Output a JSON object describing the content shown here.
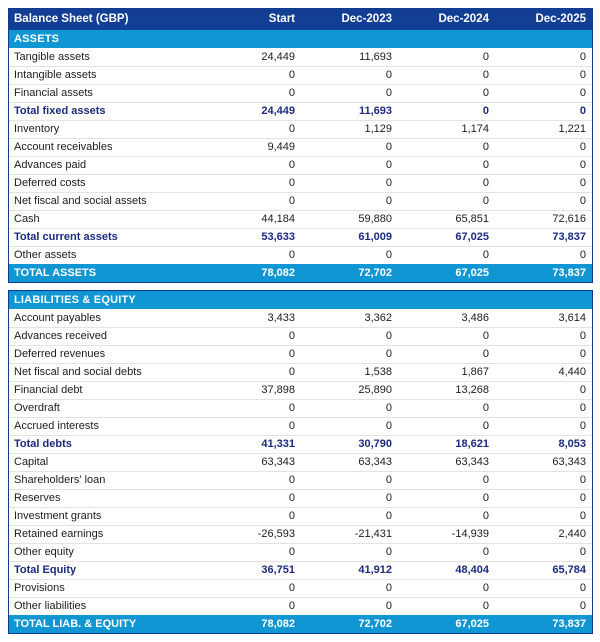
{
  "table": {
    "title": "Balance Sheet (GBP)",
    "columns": [
      "Start",
      "Dec-2023",
      "Dec-2024",
      "Dec-2025"
    ],
    "colors": {
      "header_bg": "#123f94",
      "section_bg": "#1096d3",
      "border": "#113a90",
      "subtotal_text": "#1c2b7f",
      "separator": "#e3e3e3",
      "row_text": "#1c1c1c"
    },
    "sections": [
      {
        "name": "ASSETS",
        "rows": [
          {
            "label": "Tangible assets",
            "values": [
              "24,449",
              "11,693",
              "0",
              "0"
            ],
            "style": "normal"
          },
          {
            "label": "Intangible assets",
            "values": [
              "0",
              "0",
              "0",
              "0"
            ],
            "style": "normal"
          },
          {
            "label": "Financial assets",
            "values": [
              "0",
              "0",
              "0",
              "0"
            ],
            "style": "normal"
          },
          {
            "label": "Total fixed assets",
            "values": [
              "24,449",
              "11,693",
              "0",
              "0"
            ],
            "style": "subtotal"
          },
          {
            "label": "Inventory",
            "values": [
              "0",
              "1,129",
              "1,174",
              "1,221"
            ],
            "style": "normal"
          },
          {
            "label": "Account receivables",
            "values": [
              "9,449",
              "0",
              "0",
              "0"
            ],
            "style": "normal"
          },
          {
            "label": "Advances paid",
            "values": [
              "0",
              "0",
              "0",
              "0"
            ],
            "style": "normal"
          },
          {
            "label": "Deferred costs",
            "values": [
              "0",
              "0",
              "0",
              "0"
            ],
            "style": "normal"
          },
          {
            "label": "Net fiscal and social assets",
            "values": [
              "0",
              "0",
              "0",
              "0"
            ],
            "style": "normal"
          },
          {
            "label": "Cash",
            "values": [
              "44,184",
              "59,880",
              "65,851",
              "72,616"
            ],
            "style": "normal"
          },
          {
            "label": "Total current assets",
            "values": [
              "53,633",
              "61,009",
              "67,025",
              "73,837"
            ],
            "style": "subtotal"
          },
          {
            "label": "Other assets",
            "values": [
              "0",
              "0",
              "0",
              "0"
            ],
            "style": "normal"
          }
        ],
        "total": {
          "label": "TOTAL ASSETS",
          "values": [
            "78,082",
            "72,702",
            "67,025",
            "73,837"
          ]
        }
      },
      {
        "name": "LIABILITIES & EQUITY",
        "rows": [
          {
            "label": "Account payables",
            "values": [
              "3,433",
              "3,362",
              "3,486",
              "3,614"
            ],
            "style": "normal"
          },
          {
            "label": "Advances received",
            "values": [
              "0",
              "0",
              "0",
              "0"
            ],
            "style": "normal"
          },
          {
            "label": "Deferred revenues",
            "values": [
              "0",
              "0",
              "0",
              "0"
            ],
            "style": "normal"
          },
          {
            "label": "Net fiscal and social debts",
            "values": [
              "0",
              "1,538",
              "1,867",
              "4,440"
            ],
            "style": "normal"
          },
          {
            "label": "Financial debt",
            "values": [
              "37,898",
              "25,890",
              "13,268",
              "0"
            ],
            "style": "normal"
          },
          {
            "label": "Overdraft",
            "values": [
              "0",
              "0",
              "0",
              "0"
            ],
            "style": "normal"
          },
          {
            "label": "Accrued interests",
            "values": [
              "0",
              "0",
              "0",
              "0"
            ],
            "style": "normal"
          },
          {
            "label": "Total debts",
            "values": [
              "41,331",
              "30,790",
              "18,621",
              "8,053"
            ],
            "style": "subtotal"
          },
          {
            "label": "Capital",
            "values": [
              "63,343",
              "63,343",
              "63,343",
              "63,343"
            ],
            "style": "normal"
          },
          {
            "label": "Shareholders' loan",
            "values": [
              "0",
              "0",
              "0",
              "0"
            ],
            "style": "normal"
          },
          {
            "label": "Reserves",
            "values": [
              "0",
              "0",
              "0",
              "0"
            ],
            "style": "normal"
          },
          {
            "label": "Investment grants",
            "values": [
              "0",
              "0",
              "0",
              "0"
            ],
            "style": "normal"
          },
          {
            "label": "Retained earnings",
            "values": [
              "-26,593",
              "-21,431",
              "-14,939",
              "2,440"
            ],
            "style": "normal"
          },
          {
            "label": "Other equity",
            "values": [
              "0",
              "0",
              "0",
              "0"
            ],
            "style": "normal"
          },
          {
            "label": "Total Equity",
            "values": [
              "36,751",
              "41,912",
              "48,404",
              "65,784"
            ],
            "style": "subtotal"
          },
          {
            "label": "Provisions",
            "values": [
              "0",
              "0",
              "0",
              "0"
            ],
            "style": "normal"
          },
          {
            "label": "Other liabilities",
            "values": [
              "0",
              "0",
              "0",
              "0"
            ],
            "style": "normal"
          }
        ],
        "total": {
          "label": "TOTAL LIAB. & EQUITY",
          "values": [
            "78,082",
            "72,702",
            "67,025",
            "73,837"
          ]
        }
      }
    ]
  }
}
